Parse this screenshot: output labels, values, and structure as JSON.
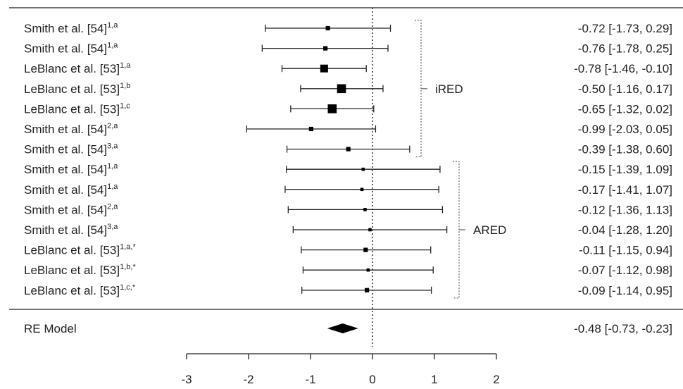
{
  "chart_data": {
    "type": "forest",
    "studies": [
      {
        "label": "Smith et al. [54]",
        "sup": "1,a",
        "est": -0.72,
        "lo": -1.73,
        "hi": 0.29,
        "weight": 2,
        "ci_text": "-0.72 [-1.73,  0.29]"
      },
      {
        "label": "Smith et al. [54]",
        "sup": "1,a",
        "est": -0.76,
        "lo": -1.78,
        "hi": 0.25,
        "weight": 2,
        "ci_text": "-0.76 [-1.78,  0.25]"
      },
      {
        "label": "LeBlanc et al. [53]",
        "sup": "1,a",
        "est": -0.78,
        "lo": -1.46,
        "hi": -0.1,
        "weight": 5,
        "ci_text": "-0.78 [-1.46, -0.10]"
      },
      {
        "label": "LeBlanc et al. [53]",
        "sup": "1,b",
        "est": -0.5,
        "lo": -1.16,
        "hi": 0.17,
        "weight": 6,
        "ci_text": "-0.50 [-1.16,  0.17]"
      },
      {
        "label": "LeBlanc et al. [53]",
        "sup": "1,c",
        "est": -0.65,
        "lo": -1.32,
        "hi": 0.02,
        "weight": 6,
        "ci_text": "-0.65 [-1.32,  0.02]"
      },
      {
        "label": "Smith et al. [54]",
        "sup": "2,a",
        "est": -0.99,
        "lo": -2.03,
        "hi": 0.05,
        "weight": 2,
        "ci_text": "-0.99 [-2.03,  0.05]"
      },
      {
        "label": "Smith et al. [54]",
        "sup": "3,a",
        "est": -0.39,
        "lo": -1.38,
        "hi": 0.6,
        "weight": 2,
        "ci_text": "-0.39 [-1.38,  0.60]"
      },
      {
        "label": "Smith et al. [54]",
        "sup": "1,a",
        "est": -0.15,
        "lo": -1.39,
        "hi": 1.09,
        "weight": 1,
        "ci_text": "-0.15 [-1.39,  1.09]"
      },
      {
        "label": "Smith et al. [54]",
        "sup": "1,a",
        "est": -0.17,
        "lo": -1.41,
        "hi": 1.07,
        "weight": 1,
        "ci_text": "-0.17 [-1.41,  1.07]"
      },
      {
        "label": "Smith et al. [54]",
        "sup": "2,a",
        "est": -0.12,
        "lo": -1.36,
        "hi": 1.13,
        "weight": 1,
        "ci_text": "-0.12 [-1.36,  1.13]"
      },
      {
        "label": "Smith et al. [54]",
        "sup": "3,a",
        "est": -0.04,
        "lo": -1.28,
        "hi": 1.2,
        "weight": 1,
        "ci_text": "-0.04 [-1.28,  1.20]"
      },
      {
        "label": "LeBlanc et al. [53]",
        "sup": "1,a,*",
        "est": -0.11,
        "lo": -1.15,
        "hi": 0.94,
        "weight": 2,
        "ci_text": "-0.11 [-1.15,  0.94]"
      },
      {
        "label": "LeBlanc et al. [53]",
        "sup": "1,b,*",
        "est": -0.07,
        "lo": -1.12,
        "hi": 0.98,
        "weight": 1,
        "ci_text": "-0.07 [-1.12,  0.98]"
      },
      {
        "label": "LeBlanc et al. [53]",
        "sup": "1,c,*",
        "est": -0.09,
        "lo": -1.14,
        "hi": 0.95,
        "weight": 2,
        "ci_text": "-0.09 [-1.14,  0.95]"
      }
    ],
    "groups": [
      {
        "name": "iRED",
        "first": 0,
        "last": 6
      },
      {
        "name": "ARED",
        "first": 7,
        "last": 13
      }
    ],
    "summary": {
      "label": "RE Model",
      "est": -0.48,
      "lo": -0.73,
      "hi": -0.23,
      "ci_text": "-0.48 [-0.73, -0.23]"
    },
    "x_ticks": [
      "-3",
      "-2",
      "-1",
      "0",
      "1",
      "2"
    ],
    "xlim": [
      -3,
      2
    ],
    "reference_line": 0
  }
}
